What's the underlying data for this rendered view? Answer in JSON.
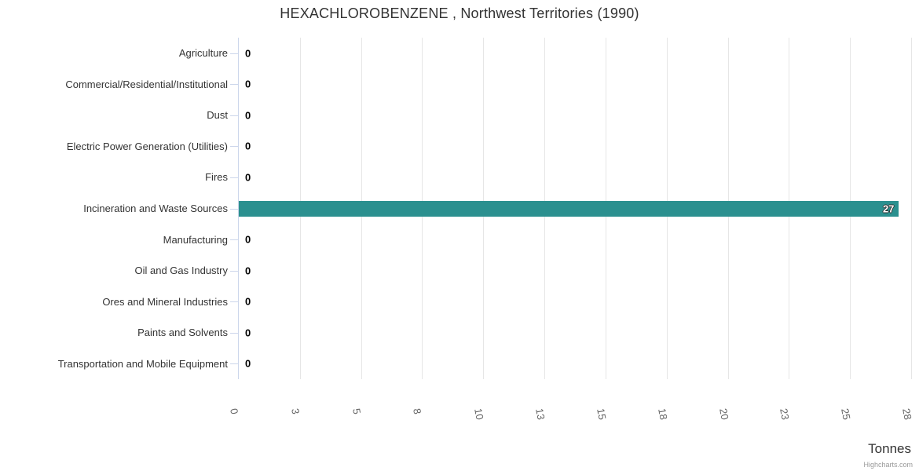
{
  "page": {
    "background": "#ffffff"
  },
  "chart_data": {
    "type": "bar",
    "orientation": "horizontal",
    "title": "HEXACHLOROBENZENE , Northwest Territories (1990)",
    "categories": [
      "Agriculture",
      "Commercial/Residential/Institutional",
      "Dust",
      "Electric Power Generation (Utilities)",
      "Fires",
      "Incineration and Waste Sources",
      "Manufacturing",
      "Oil and Gas Industry",
      "Ores and Mineral Industries",
      "Paints and Solvents",
      "Transportation and Mobile Equipment"
    ],
    "values": [
      0,
      0,
      0,
      0,
      0,
      27,
      0,
      0,
      0,
      0,
      0
    ],
    "value_labels": [
      "0",
      "0",
      "0",
      "0",
      "0",
      "27",
      "0",
      "0",
      "0",
      "0",
      "0"
    ],
    "xlabel": "Tonnes",
    "xlim": [
      0,
      27.5
    ],
    "x_tick_labels": [
      "0",
      "3",
      "5",
      "8",
      "10",
      "13",
      "15",
      "18",
      "20",
      "23",
      "25",
      "28"
    ],
    "grid": true,
    "legend": false,
    "bar_color": "#2b908f",
    "credits": "Highcharts.com",
    "colors": {
      "title": "#333333",
      "category_label": "#333333",
      "x_tick_label": "#666666",
      "axis_line": "#ccd6eb",
      "grid_line": "#e6e6e6",
      "value_label_outside": "#000000",
      "value_label_inside": "#ffffff",
      "axis_title": "#333333",
      "credits_text": "#999999"
    }
  }
}
